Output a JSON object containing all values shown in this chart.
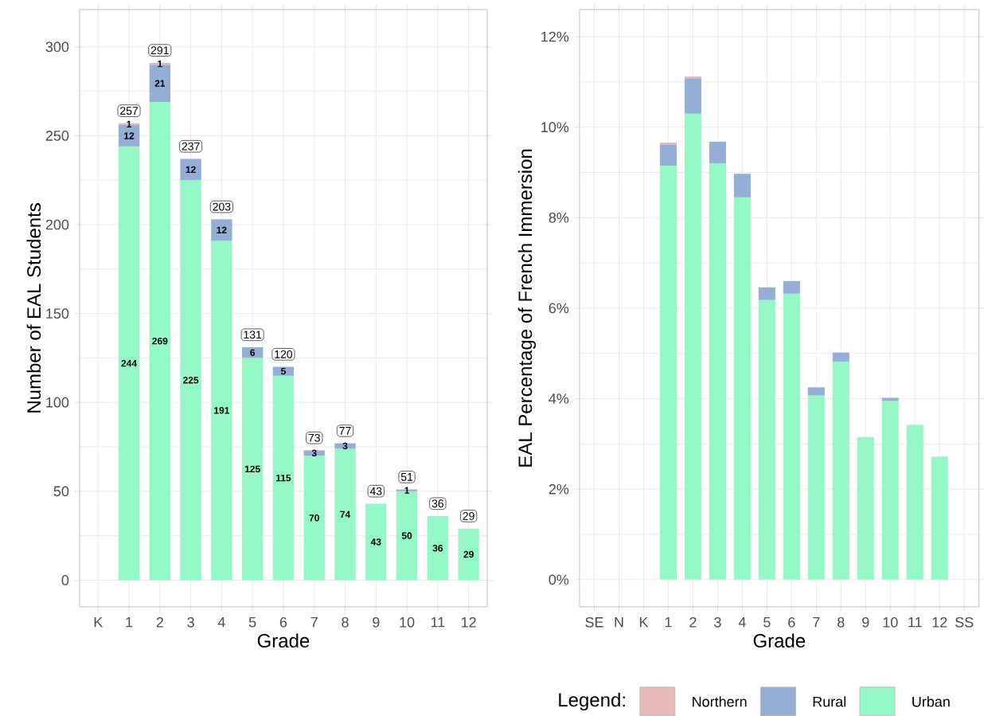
{
  "chart_data": [
    {
      "type": "bar",
      "stacked": true,
      "ylabel": "Number of EAL Students",
      "xlabel": "Grade",
      "categories": [
        "K",
        "1",
        "2",
        "3",
        "4",
        "5",
        "6",
        "7",
        "8",
        "9",
        "10",
        "11",
        "12"
      ],
      "series": [
        {
          "color": "#94f7c6",
          "values": [
            null,
            244,
            269,
            225,
            191,
            125,
            115,
            70,
            74,
            43,
            50,
            36,
            29
          ],
          "value_labels": [
            null,
            "244",
            "269",
            "225",
            "191",
            "125",
            "115",
            "70",
            "74",
            "43",
            "50",
            "36",
            "29"
          ]
        },
        {
          "color": "#94aed6",
          "values": [
            null,
            12,
            21,
            12,
            12,
            6,
            5,
            3,
            3,
            null,
            1,
            null,
            null
          ],
          "value_labels": [
            null,
            "12",
            "21",
            "12",
            "12",
            "6",
            "5",
            "3",
            "3",
            null,
            "1",
            null,
            null
          ]
        },
        {
          "color": "#e6b8b8",
          "values": [
            null,
            1,
            1,
            null,
            null,
            null,
            null,
            null,
            null,
            null,
            null,
            null,
            null
          ],
          "value_labels": [
            null,
            "1",
            "1",
            null,
            null,
            null,
            null,
            null,
            null,
            null,
            null,
            null,
            null
          ]
        }
      ],
      "totals": [
        null,
        "257",
        "291",
        "237",
        "203",
        "131",
        "120",
        "73",
        "77",
        "43",
        "51",
        "36",
        "29"
      ],
      "ylim": [
        -15,
        321
      ],
      "yticks": [
        0,
        50,
        100,
        150,
        200,
        250,
        300
      ],
      "grid": true,
      "legend": false
    },
    {
      "type": "bar",
      "stacked": true,
      "ylabel": "EAL Percentage of French Immersion",
      "xlabel": "Grade",
      "legend_title": "Legend:",
      "categories": [
        "SE",
        "N",
        "K",
        "1",
        "2",
        "3",
        "4",
        "5",
        "6",
        "7",
        "8",
        "9",
        "10",
        "11",
        "12",
        "SS"
      ],
      "series": [
        {
          "name": "Urban",
          "color": "#94f7c6",
          "values": [
            null,
            null,
            null,
            9.15,
            10.3,
            9.2,
            8.45,
            6.18,
            6.32,
            4.07,
            4.82,
            3.15,
            3.95,
            3.42,
            2.72,
            null
          ]
        },
        {
          "name": "Rural",
          "color": "#94aed6",
          "values": [
            null,
            null,
            null,
            0.47,
            0.78,
            0.48,
            0.52,
            0.28,
            0.28,
            0.18,
            0.2,
            null,
            0.07,
            null,
            null,
            null
          ]
        },
        {
          "name": "Northern",
          "color": "#e6b8b8",
          "values": [
            null,
            null,
            null,
            0.04,
            0.04,
            null,
            null,
            null,
            null,
            null,
            null,
            null,
            null,
            null,
            null,
            null
          ]
        }
      ],
      "ylim": [
        -0.6,
        12.6
      ],
      "yticks": [
        {
          "value": 0,
          "label": "0%"
        },
        {
          "value": 2,
          "label": "2%"
        },
        {
          "value": 4,
          "label": "4%"
        },
        {
          "value": 6,
          "label": "6%"
        },
        {
          "value": 8,
          "label": "8%"
        },
        {
          "value": 10,
          "label": "10%"
        },
        {
          "value": 12,
          "label": "12%"
        }
      ],
      "grid": true,
      "legend": "bottom"
    }
  ]
}
